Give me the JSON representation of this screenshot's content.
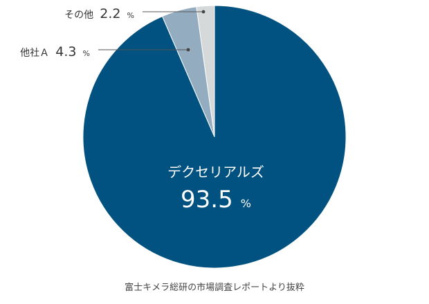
{
  "chart_data": {
    "type": "pie",
    "slices": [
      {
        "name": "デクセリアルズ",
        "value": 93.5,
        "value_text": "93.5",
        "unit": "%",
        "color": "#015281"
      },
      {
        "name": "他社Ａ",
        "value": 4.3,
        "value_text": "4.3",
        "unit": "%",
        "color": "#93acc0"
      },
      {
        "name": "その他",
        "value": 2.2,
        "value_text": "2.2",
        "unit": "%",
        "color": "#d6d9da"
      }
    ]
  },
  "source_note": "富士キメラ総研の市場調査レポートより抜粋"
}
